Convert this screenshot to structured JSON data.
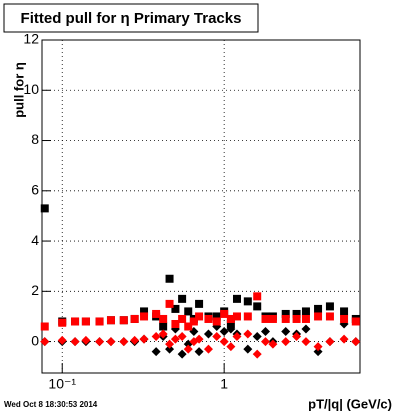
{
  "chart_data": {
    "type": "scatter",
    "title": "Fitted pull for  η  Primary Tracks",
    "x_label": "pT/|q| (GeV/c)",
    "y_label": "pull for η",
    "footer": "Wed Oct  8 18:30:53 2014",
    "x": [
      0.078,
      0.1,
      0.12,
      0.14,
      0.17,
      0.2,
      0.24,
      0.28,
      0.32,
      0.38,
      0.42,
      0.46,
      0.5,
      0.55,
      0.6,
      0.65,
      0.7,
      0.8,
      0.9,
      1.0,
      1.1,
      1.2,
      1.4,
      1.6,
      1.8,
      2.0,
      2.4,
      2.8,
      3.2,
      3.8,
      4.5,
      5.5,
      6.5
    ],
    "series": [
      {
        "color": "#000000",
        "marker": "square",
        "values": [
          5.3,
          0.8,
          0.8,
          0.8,
          0.8,
          0.85,
          0.85,
          0.9,
          1.2,
          1.0,
          0.6,
          2.5,
          1.3,
          1.7,
          1.2,
          0.9,
          1.5,
          1.0,
          1.0,
          1.2,
          0.7,
          1.7,
          1.6,
          1.4,
          1.0,
          1.0,
          1.1,
          1.1,
          1.2,
          1.3,
          1.4,
          1.2,
          0.9
        ]
      },
      {
        "color": "#000000",
        "marker": "diamond",
        "values": [
          0.0,
          0.0,
          0.0,
          0.0,
          0.0,
          0.0,
          0.0,
          0.0,
          0.1,
          -0.4,
          0.2,
          -0.3,
          0.5,
          -0.5,
          -0.1,
          0.4,
          -0.4,
          0.3,
          0.6,
          0.4,
          0.5,
          0.3,
          -0.3,
          0.2,
          0.4,
          0.0,
          0.4,
          0.3,
          0.5,
          -0.4,
          0.0,
          0.7,
          0.0
        ]
      },
      {
        "color": "#ff0000",
        "marker": "diamond",
        "values": [
          0.0,
          0.05,
          0.0,
          0.05,
          0.0,
          0.0,
          0.0,
          0.05,
          0.1,
          0.2,
          0.3,
          -0.1,
          0.1,
          0.2,
          -0.3,
          0.0,
          0.1,
          -0.3,
          0.2,
          0.0,
          -0.2,
          0.2,
          0.3,
          -0.5,
          0.0,
          -0.1,
          0.0,
          0.2,
          0.0,
          -0.2,
          0.0,
          0.1,
          0.0
        ]
      },
      {
        "color": "#ff0000",
        "marker": "square",
        "values": [
          0.6,
          0.75,
          0.8,
          0.8,
          0.8,
          0.85,
          0.85,
          0.9,
          1.0,
          1.1,
          0.9,
          1.5,
          0.7,
          0.9,
          0.6,
          0.8,
          1.0,
          0.9,
          0.8,
          1.1,
          0.9,
          1.0,
          1.0,
          1.8,
          0.9,
          0.9,
          0.9,
          0.9,
          0.9,
          1.0,
          1.0,
          0.9,
          0.8
        ]
      }
    ],
    "xlim": [
      0.075,
      6.9
    ],
    "log_x": true,
    "xticks": [
      {
        "value": 0.1,
        "label": "10⁻¹"
      },
      1
    ],
    "ylim": [
      -1.25,
      12
    ],
    "yticks": [
      0,
      2,
      4,
      6,
      8,
      10,
      12
    ],
    "grid": true
  }
}
